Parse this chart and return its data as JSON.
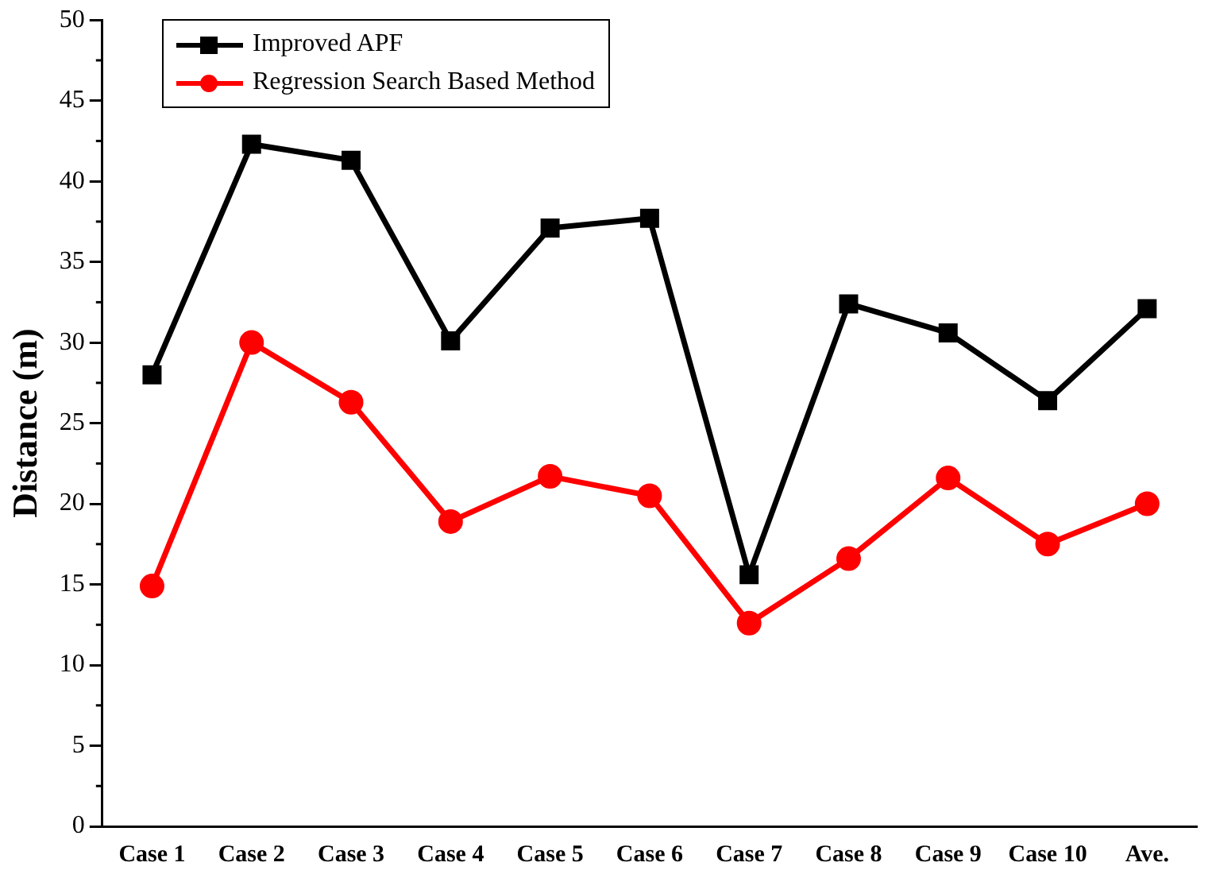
{
  "chart_data": {
    "type": "line",
    "ylabel": "Distance (m)",
    "categories": [
      "Case 1",
      "Case 2",
      "Case 3",
      "Case 4",
      "Case 5",
      "Case 6",
      "Case 7",
      "Case 8",
      "Case 9",
      "Case 10",
      "Ave."
    ],
    "series": [
      {
        "name": "Improved APF",
        "color": "#000000",
        "marker": "square",
        "values": [
          28.0,
          42.3,
          41.3,
          30.1,
          37.1,
          37.7,
          15.6,
          32.4,
          30.6,
          26.4,
          32.1
        ]
      },
      {
        "name": "Regression Search Based Method",
        "color": "#ff0000",
        "marker": "circle",
        "values": [
          14.9,
          30.0,
          26.3,
          18.9,
          21.7,
          20.5,
          12.6,
          16.6,
          21.6,
          17.5,
          20.0
        ]
      }
    ],
    "ylim": [
      0,
      50
    ],
    "yticks": [
      0,
      5,
      10,
      15,
      20,
      25,
      30,
      35,
      40,
      45,
      50
    ],
    "grid": false,
    "legend": "top left",
    "line_style": "solid"
  }
}
